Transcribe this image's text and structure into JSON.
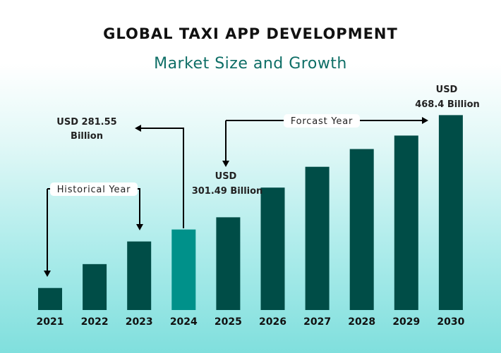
{
  "chart_data": {
    "type": "bar",
    "title": "GLOBAL TAXI APP DEVELOPMENT",
    "subtitle": "Market Size and Growth",
    "categories": [
      "2021",
      "2022",
      "2023",
      "2024",
      "2025",
      "2026",
      "2027",
      "2028",
      "2029",
      "2030"
    ],
    "values": [
      186,
      225,
      262,
      281.55,
      301.49,
      350,
      384,
      413,
      435,
      468.4
    ],
    "units": "USD Billion",
    "ylim": [
      150,
      470
    ],
    "grid": false,
    "highlight_category": "2024",
    "annotations": {
      "historical": "Historical Year",
      "forecast": "Forcast Year",
      "label_2024": [
        "USD 281.55",
        "Billion"
      ],
      "label_2025": [
        "USD",
        "301.49 Billion"
      ],
      "label_2030": [
        "USD",
        "468.4 Billion"
      ]
    },
    "colors": {
      "bar": "#004d47",
      "highlight": "#00918a",
      "subtitle": "#0e6e66"
    }
  }
}
